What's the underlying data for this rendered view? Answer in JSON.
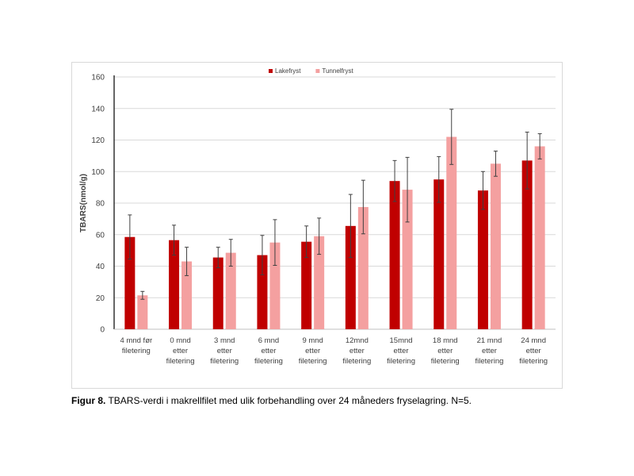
{
  "chart_data": {
    "type": "bar",
    "ylabel": "TBARS(nmol/g)",
    "ylim": [
      0,
      160
    ],
    "yticks": [
      0,
      20,
      40,
      60,
      80,
      100,
      120,
      140,
      160
    ],
    "grid": true,
    "legend_position": "top-center",
    "categories": [
      [
        "4 mnd før",
        "filetering"
      ],
      [
        "0 mnd",
        "etter",
        "filetering"
      ],
      [
        "3 mnd",
        "etter",
        "filetering"
      ],
      [
        "6 mnd",
        "etter",
        "filetering"
      ],
      [
        "9 mnd",
        "etter",
        "filetering"
      ],
      [
        "12mnd",
        "etter",
        "filetering"
      ],
      [
        "15mnd",
        "etter",
        "filetering"
      ],
      [
        "18 mnd",
        "etter",
        "filetering"
      ],
      [
        "21 mnd",
        "etter",
        "filetering"
      ],
      [
        "24 mnd",
        "etter",
        "filetering"
      ]
    ],
    "series": [
      {
        "name": "Lakefryst",
        "color": "#c00000",
        "values": [
          58.5,
          56.5,
          45.5,
          47,
          55.5,
          65.5,
          94,
          95,
          88,
          107
        ],
        "errors": [
          14,
          9.5,
          6.5,
          12.5,
          10,
          20,
          13,
          14.5,
          12,
          18
        ]
      },
      {
        "name": "Tunnelfryst",
        "color": "#f4a0a0",
        "values": [
          21.5,
          43,
          48.5,
          55,
          59,
          77.5,
          88.5,
          122,
          105,
          116
        ],
        "errors": [
          2.5,
          9,
          8.5,
          14.5,
          11.5,
          17,
          20.5,
          17.5,
          8,
          8
        ]
      }
    ]
  },
  "caption": {
    "label": "Figur 8.",
    "text": " TBARS-verdi i makrellfilet med ulik forbehandling over 24 måneders fryselagring. N=5."
  }
}
